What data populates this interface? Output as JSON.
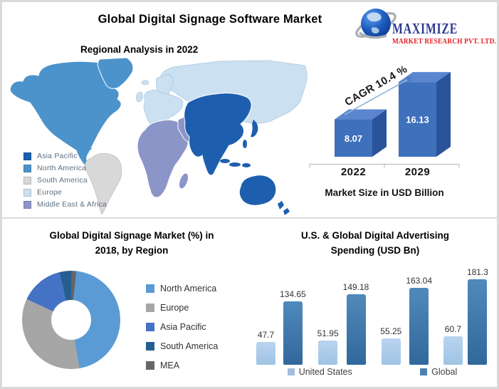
{
  "header": {
    "title": "Global Digital Signage Software Market",
    "logo": {
      "name": "MAXIMIZE",
      "subtitle": "MARKET RESEARCH PVT. LTD.",
      "name_color": "#2B3990",
      "subtitle_color": "#E31E24"
    }
  },
  "map_section": {
    "title": "Regional Analysis in 2022",
    "legend": [
      {
        "label": "Asia Pacific",
        "color": "#1D5FAE"
      },
      {
        "label": "North America",
        "color": "#4C93CB"
      },
      {
        "label": "South America",
        "color": "#D8D8D8"
      },
      {
        "label": "Europe",
        "color": "#CBE1F1"
      },
      {
        "label": "Middle East & Africa",
        "color": "#8C95C8"
      }
    ]
  },
  "chart_data": [
    {
      "id": "market_size",
      "type": "bar",
      "style": "3d",
      "title": "Market Size in USD Billion",
      "categories": [
        "2022",
        "2029"
      ],
      "values": [
        8.07,
        16.13
      ],
      "annotation": "CAGR 10.4 %",
      "colors": {
        "front": "#3E70BC",
        "top": "#5A86CF",
        "side": "#2A5399"
      },
      "ylim": [
        0,
        18
      ]
    },
    {
      "id": "regional_share",
      "type": "pie",
      "donut": true,
      "title": "Global Digital Signage Market (%) in 2018, by Region",
      "labels": [
        "North America",
        "Europe",
        "Asia Pacific",
        "South America",
        "MEA"
      ],
      "values": [
        45.6,
        34.7,
        14.2,
        3.9,
        1.6
      ],
      "colors": [
        "#5B9BD5",
        "#A6A6A6",
        "#4472C4",
        "#255E91",
        "#666666"
      ],
      "legend_position": "right"
    },
    {
      "id": "ad_spending",
      "type": "bar",
      "title": "U.S. & Global Digital Advertising Spending (USD Bn)",
      "categories": [
        "",
        "",
        "",
        ""
      ],
      "series": [
        {
          "name": "United States",
          "values": [
            47.7,
            51.95,
            55.25,
            60.7
          ],
          "color_top": "#B9D4EF",
          "color_bottom": "#9FC3E5",
          "legend_color": "#9FBFDC"
        },
        {
          "name": "Global",
          "values": [
            134.65,
            149.18,
            163.04,
            181.3
          ],
          "color_top": "#5089BB",
          "color_bottom": "#31689C",
          "legend_color": "#4E81B0"
        }
      ],
      "legend_position": "bottom",
      "ylim": [
        0,
        200
      ]
    }
  ]
}
